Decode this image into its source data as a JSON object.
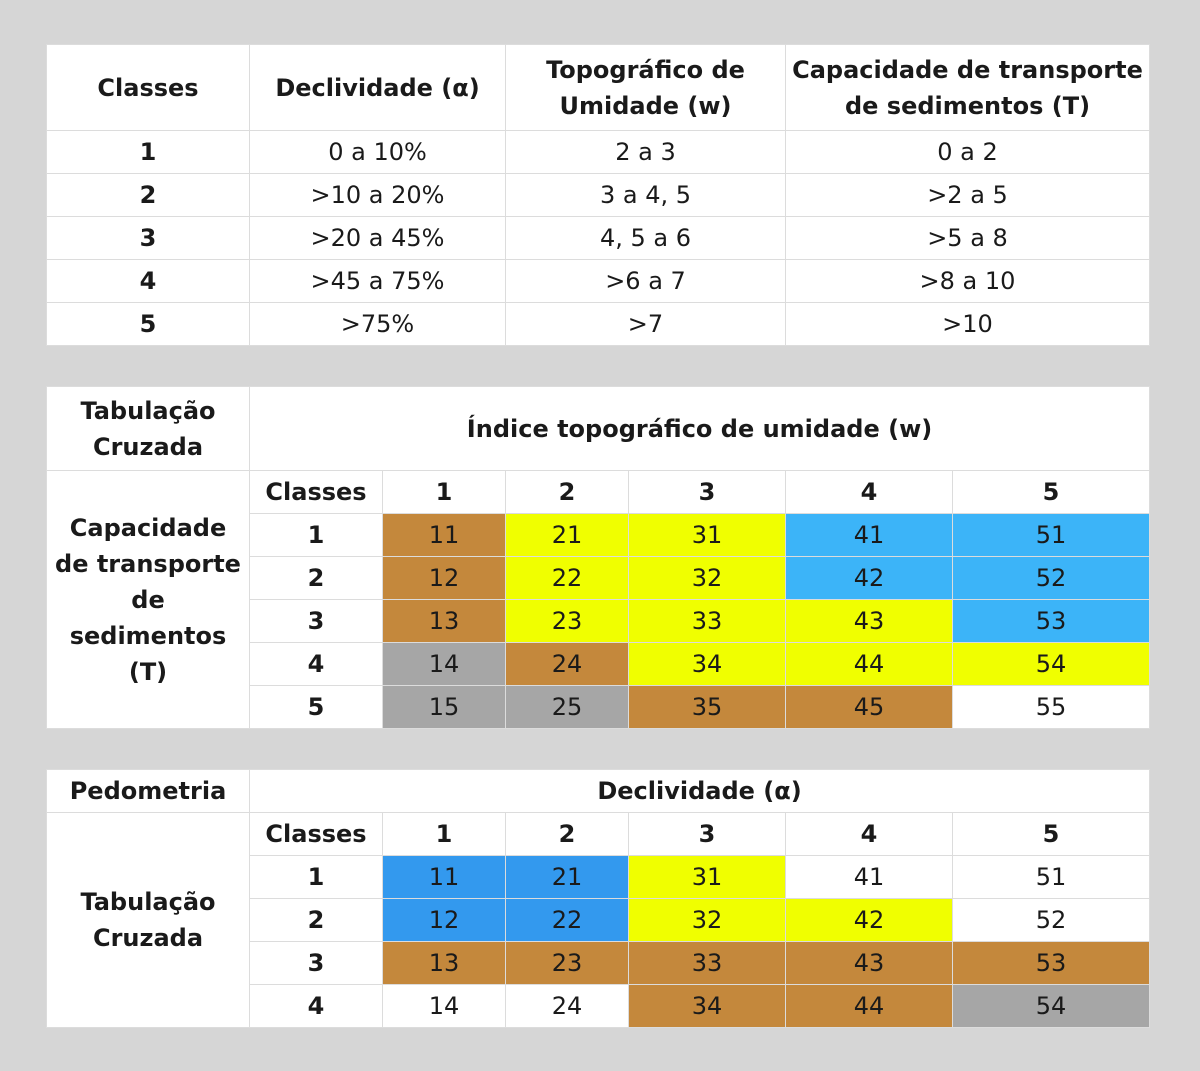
{
  "table1": {
    "headers": [
      "Classes",
      "Declividade (α)",
      "Topográfico de Umidade (w)",
      "Capacidade de transporte de sedimentos (T)"
    ],
    "rows": [
      [
        "1",
        "0 a 10%",
        "2 a 3",
        "0 a 2"
      ],
      [
        "2",
        ">10 a 20%",
        "3 a 4, 5",
        ">2 a 5"
      ],
      [
        "3",
        ">20 a 45%",
        "4, 5 a 6",
        ">5 a 8"
      ],
      [
        "4",
        ">45 a 75%",
        ">6 a 7",
        ">8 a 10"
      ],
      [
        "5",
        ">75%",
        ">7",
        ">10"
      ]
    ]
  },
  "table2": {
    "corner_label": "Tabulação Cruzada",
    "column_title": "Índice topográfico de umidade (w)",
    "row_title": "Capacidade de transporte de sedimentos (T)",
    "classes_label": "Classes",
    "col_classes": [
      "1",
      "2",
      "3",
      "4",
      "5"
    ],
    "row_classes": [
      "1",
      "2",
      "3",
      "4",
      "5"
    ],
    "cells": [
      [
        "11",
        "21",
        "31",
        "41",
        "51"
      ],
      [
        "12",
        "22",
        "32",
        "42",
        "52"
      ],
      [
        "13",
        "23",
        "33",
        "43",
        "53"
      ],
      [
        "14",
        "24",
        "34",
        "44",
        "54"
      ],
      [
        "15",
        "25",
        "35",
        "45",
        "55"
      ]
    ],
    "colors": [
      [
        "#c4883c",
        "#f0ff00",
        "#f0ff00",
        "#3cb4f8",
        "#3cb4f8"
      ],
      [
        "#c4883c",
        "#f0ff00",
        "#f0ff00",
        "#3cb4f8",
        "#3cb4f8"
      ],
      [
        "#c4883c",
        "#f0ff00",
        "#f0ff00",
        "#f0ff00",
        "#3cb4f8"
      ],
      [
        "#a6a6a6",
        "#c4883c",
        "#f0ff00",
        "#f0ff00",
        "#f0ff00"
      ],
      [
        "#a6a6a6",
        "#a6a6a6",
        "#c4883c",
        "#c4883c",
        "#ffffff"
      ]
    ]
  },
  "table3": {
    "corner_label": "Pedometria",
    "column_title": "Declividade (α)",
    "row_title": "Tabulação Cruzada",
    "classes_label": "Classes",
    "col_classes": [
      "1",
      "2",
      "3",
      "4",
      "5"
    ],
    "row_classes": [
      "1",
      "2",
      "3",
      "4"
    ],
    "cells": [
      [
        "11",
        "21",
        "31",
        "41",
        "51"
      ],
      [
        "12",
        "22",
        "32",
        "42",
        "52"
      ],
      [
        "13",
        "23",
        "33",
        "43",
        "53"
      ],
      [
        "14",
        "24",
        "34",
        "44",
        "54"
      ]
    ],
    "colors": [
      [
        "#3399ee",
        "#3399ee",
        "#f0ff00",
        "#ffffff",
        "#ffffff"
      ],
      [
        "#3399ee",
        "#3399ee",
        "#f0ff00",
        "#f0ff00",
        "#ffffff"
      ],
      [
        "#c4883c",
        "#c4883c",
        "#c4883c",
        "#c4883c",
        "#c4883c"
      ],
      [
        "#ffffff",
        "#ffffff",
        "#c4883c",
        "#c4883c",
        "#a6a6a6"
      ]
    ]
  }
}
